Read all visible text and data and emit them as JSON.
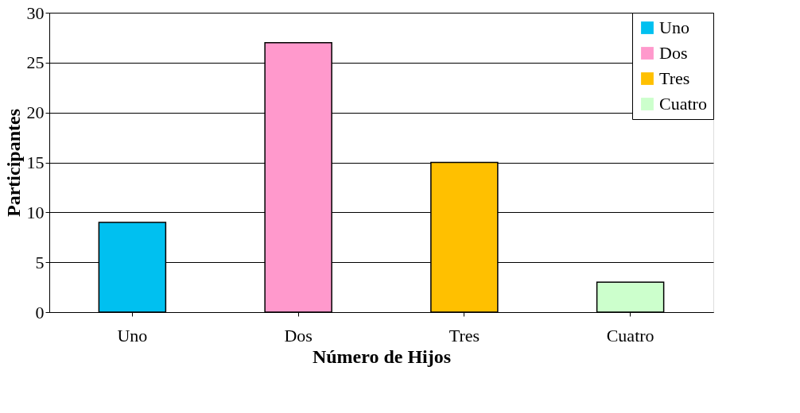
{
  "chart_data": {
    "type": "bar",
    "xlabel": "Número de Hijos",
    "ylabel": "Participantes",
    "categories": [
      "Uno",
      "Dos",
      "Tres",
      "Cuatro"
    ],
    "series": [
      {
        "name": "Uno",
        "color": "#00c0f0",
        "values": [
          9,
          null,
          null,
          null
        ]
      },
      {
        "name": "Dos",
        "color": "#ff99cc",
        "values": [
          null,
          27,
          null,
          null
        ]
      },
      {
        "name": "Tres",
        "color": "#ffc000",
        "values": [
          null,
          null,
          15,
          null
        ]
      },
      {
        "name": "Cuatro",
        "color": "#ccffcc",
        "values": [
          null,
          null,
          null,
          3
        ]
      }
    ],
    "ylim": [
      0,
      30
    ],
    "yticks": [
      0,
      5,
      10,
      15,
      20,
      25,
      30
    ],
    "grid": "y",
    "legend": "top right"
  }
}
